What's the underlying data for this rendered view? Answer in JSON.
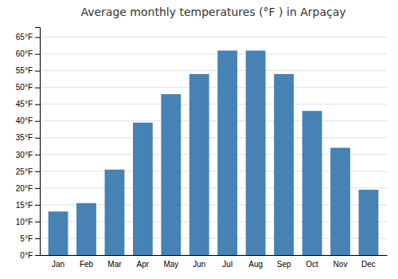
{
  "chart_data": {
    "type": "bar",
    "title": "Average monthly temperatures (°F ) in Arpaçay",
    "categories": [
      "Jan",
      "Feb",
      "Mar",
      "Apr",
      "May",
      "Jun",
      "Jul",
      "Aug",
      "Sep",
      "Oct",
      "Nov",
      "Dec"
    ],
    "values": [
      13,
      15.5,
      25.5,
      39.5,
      48,
      54,
      61,
      61,
      54,
      43,
      32,
      19.5
    ],
    "ylim": [
      0,
      68
    ],
    "yticks": [
      {
        "value": 0,
        "label": "0°F"
      },
      {
        "value": 5,
        "label": "5°F"
      },
      {
        "value": 10,
        "label": "10°F"
      },
      {
        "value": 15,
        "label": "15°F"
      },
      {
        "value": 20,
        "label": "20°F"
      },
      {
        "value": 25,
        "label": "25°F"
      },
      {
        "value": 30,
        "label": "30°F"
      },
      {
        "value": 35,
        "label": "35°F"
      },
      {
        "value": 40,
        "label": "40°F"
      },
      {
        "value": 45,
        "label": "45°F"
      },
      {
        "value": 50,
        "label": "50°F"
      },
      {
        "value": 55,
        "label": "55°F"
      },
      {
        "value": 60,
        "label": "60°F"
      },
      {
        "value": 65,
        "label": "65°F"
      }
    ],
    "grid": true
  }
}
